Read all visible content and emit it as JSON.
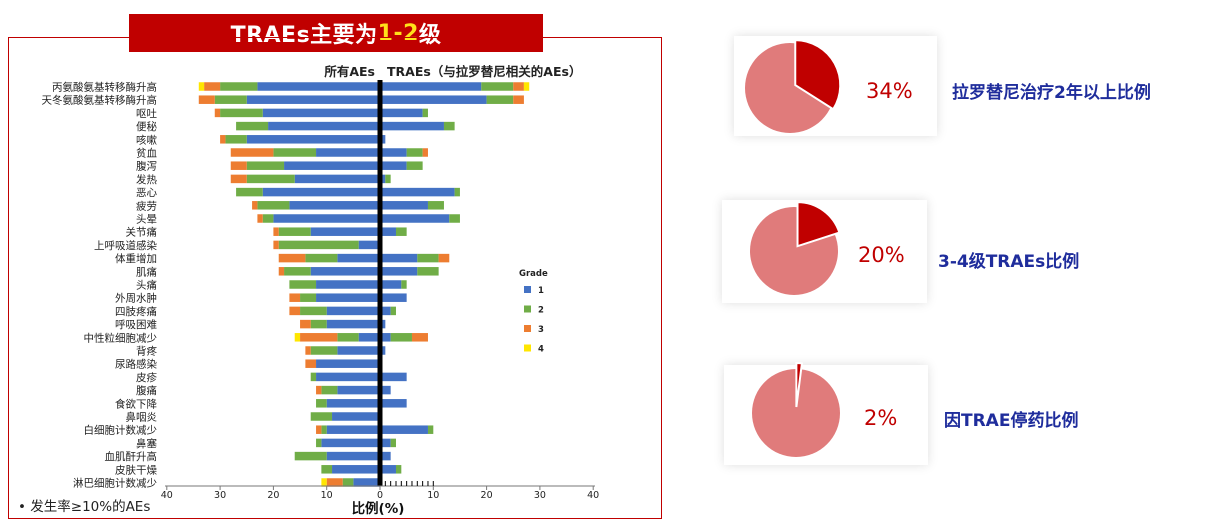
{
  "title": {
    "prefix": "TRAEs主要为",
    "highlight": "1-2",
    "suffix": "级"
  },
  "footnote": "•  发生率≥10%的AEs",
  "chart_data": {
    "type": "bar",
    "orientation": "horizontal-diverging-stacked",
    "left_header": "所有AEs",
    "right_header": "TRAEs（与拉罗替尼相关的AEs）",
    "xlabel": "比例(%)",
    "x_ticks_left": [
      "40",
      "30",
      "20",
      "10",
      "0"
    ],
    "x_ticks_right": [
      "10",
      "20",
      "30",
      "40"
    ],
    "xlim": [
      -40,
      40
    ],
    "legend_title": "Grade",
    "legend_position": "right",
    "legend": [
      {
        "label": "1",
        "color": "#4472c4"
      },
      {
        "label": "2",
        "color": "#70ad47"
      },
      {
        "label": "3",
        "color": "#ed7d31"
      },
      {
        "label": "4",
        "color": "#ffe600"
      }
    ],
    "categories": [
      "丙氨酸氨基转移酶升高",
      "天冬氨酸氨基转移酶升高",
      "呕吐",
      "便秘",
      "咳嗽",
      "贫血",
      "腹泻",
      "发热",
      "恶心",
      "疲劳",
      "头晕",
      "关节痛",
      "上呼吸道感染",
      "体重增加",
      "肌痛",
      "头痛",
      "外周水肿",
      "四肢疼痛",
      "呼吸困难",
      "中性粒细胞减少",
      "背疼",
      "尿路感染",
      "皮疹",
      "腹痛",
      "食欲下降",
      "鼻咽炎",
      "白细胞计数减少",
      "鼻塞",
      "血肌酐升高",
      "皮肤干燥",
      "淋巴细胞计数减少"
    ],
    "all_aes": [
      [
        23,
        7,
        3,
        1
      ],
      [
        25,
        6,
        3,
        0
      ],
      [
        22,
        8,
        1,
        0
      ],
      [
        21,
        6,
        0,
        0
      ],
      [
        25,
        4,
        1,
        0
      ],
      [
        12,
        8,
        8,
        0
      ],
      [
        18,
        7,
        3,
        0
      ],
      [
        16,
        9,
        3,
        0
      ],
      [
        22,
        5,
        0,
        0
      ],
      [
        17,
        6,
        1,
        0
      ],
      [
        20,
        2,
        1,
        0
      ],
      [
        13,
        6,
        1,
        0
      ],
      [
        4,
        15,
        1,
        0
      ],
      [
        8,
        6,
        5,
        0
      ],
      [
        13,
        5,
        1,
        0
      ],
      [
        12,
        5,
        0,
        0
      ],
      [
        12,
        3,
        2,
        0
      ],
      [
        10,
        5,
        2,
        0
      ],
      [
        10,
        3,
        2,
        0
      ],
      [
        4,
        4,
        7,
        1
      ],
      [
        8,
        5,
        1,
        0
      ],
      [
        12,
        0,
        2,
        0
      ],
      [
        12,
        1,
        0,
        0
      ],
      [
        8,
        3,
        1,
        0
      ],
      [
        10,
        2,
        0,
        0
      ],
      [
        9,
        4,
        0,
        0
      ],
      [
        10,
        1,
        1,
        0
      ],
      [
        11,
        1,
        0,
        0
      ],
      [
        10,
        6,
        0,
        0
      ],
      [
        9,
        2,
        0,
        0
      ],
      [
        5,
        2,
        3,
        1
      ]
    ],
    "traes": [
      [
        19,
        6,
        2,
        1
      ],
      [
        20,
        5,
        2,
        0
      ],
      [
        8,
        1,
        0,
        0
      ],
      [
        12,
        2,
        0,
        0
      ],
      [
        1,
        0,
        0,
        0
      ],
      [
        5,
        3,
        1,
        0
      ],
      [
        5,
        3,
        0,
        0
      ],
      [
        1,
        1,
        0,
        0
      ],
      [
        14,
        1,
        0,
        0
      ],
      [
        9,
        3,
        0,
        0
      ],
      [
        13,
        2,
        0,
        0
      ],
      [
        3,
        2,
        0,
        0
      ],
      [
        0,
        0,
        0,
        0
      ],
      [
        7,
        4,
        2,
        0
      ],
      [
        7,
        4,
        0,
        0
      ],
      [
        4,
        1,
        0,
        0
      ],
      [
        5,
        0,
        0,
        0
      ],
      [
        2,
        1,
        0,
        0
      ],
      [
        1,
        0,
        0,
        0
      ],
      [
        2,
        4,
        3,
        0
      ],
      [
        1,
        0,
        0,
        0
      ],
      [
        0,
        0,
        0,
        0
      ],
      [
        5,
        0,
        0,
        0
      ],
      [
        2,
        0,
        0,
        0
      ],
      [
        5,
        0,
        0,
        0
      ],
      [
        0,
        0,
        0,
        0
      ],
      [
        9,
        1,
        0,
        0
      ],
      [
        2,
        1,
        0,
        0
      ],
      [
        2,
        0,
        0,
        0
      ],
      [
        3,
        1,
        0,
        0
      ],
      [
        0,
        0,
        0,
        0
      ]
    ]
  },
  "pies": [
    {
      "value": 34,
      "label_pct": "34%",
      "label_text": "拉罗替尼治疗2年以上比例",
      "color_main": "#e07b7b",
      "color_slice": "#c00000"
    },
    {
      "value": 20,
      "label_pct": "20%",
      "label_text": "3-4级TRAEs比例",
      "color_main": "#e07b7b",
      "color_slice": "#c00000"
    },
    {
      "value": 2,
      "label_pct": "2%",
      "label_text": "因TRAE停药比例",
      "color_main": "#e07b7b",
      "color_slice": "#c00000"
    }
  ]
}
